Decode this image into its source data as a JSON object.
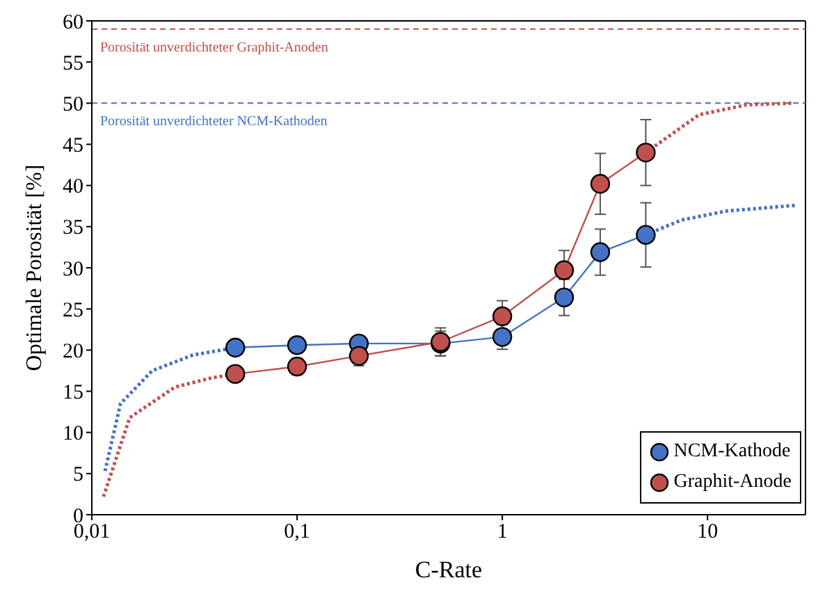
{
  "chart_data": {
    "type": "line",
    "xlabel": "C-Rate",
    "ylabel": "Optimale Porosität [%]",
    "log": "x",
    "xlim": [
      0.01,
      30
    ],
    "xticks": [
      {
        "value": 0.01,
        "label": "0,01"
      },
      {
        "value": 0.1,
        "label": "0,1"
      },
      1,
      10
    ],
    "ylim": [
      0,
      60
    ],
    "yticks": [
      0,
      5,
      10,
      15,
      20,
      25,
      30,
      35,
      40,
      45,
      50,
      55,
      60
    ],
    "grid": false,
    "legend": "bottom right",
    "marker": "circle",
    "line_style": "solid",
    "series": [
      {
        "name": "NCM-Kathode",
        "color": "#4472c4",
        "x": [
          0.05,
          0.1,
          0.2,
          0.5,
          1,
          2,
          3,
          5
        ],
        "values": [
          20.3,
          20.6,
          20.8,
          20.8,
          21.6,
          26.4,
          31.9,
          34.0
        ],
        "errors": [
          null,
          null,
          0.5,
          1.5,
          1.5,
          2.2,
          2.8,
          3.9
        ]
      },
      {
        "name": "Graphit-Anode",
        "color": "#c0504d",
        "x": [
          0.05,
          0.1,
          0.2,
          0.5,
          1,
          2,
          3,
          5
        ],
        "values": [
          17.1,
          18.0,
          19.3,
          21.0,
          24.1,
          29.7,
          40.2,
          44.0
        ],
        "errors": [
          null,
          1.0,
          1.2,
          1.7,
          1.9,
          2.4,
          3.7,
          4.0
        ]
      },
      {
        "color": "#4472c4",
        "marker": "none",
        "line_style": "dotted",
        "x": [
          0.0116,
          0.0138,
          0.0197,
          0.0311,
          0.05
        ],
        "values": [
          5.3,
          13.5,
          17.5,
          19.4,
          20.3
        ]
      },
      {
        "color": "#c0504d",
        "marker": "none",
        "line_style": "dotted",
        "x": [
          0.0114,
          0.0153,
          0.0254,
          0.038,
          0.05
        ],
        "values": [
          2.2,
          11.8,
          15.5,
          16.6,
          17.1
        ]
      },
      {
        "color": "#4472c4",
        "marker": "none",
        "line_style": "dotted",
        "x": [
          5,
          7.45,
          12.4,
          27.2
        ],
        "values": [
          34.0,
          35.8,
          36.9,
          37.6
        ]
      },
      {
        "color": "#c0504d",
        "marker": "none",
        "line_style": "dotted",
        "x": [
          5,
          9.1,
          15.5,
          25.6
        ],
        "values": [
          44.0,
          48.6,
          49.8,
          50.0
        ]
      }
    ],
    "ref_lines": [
      {
        "axis": "y",
        "value": 59,
        "label": "Porosität unverdichteter Graphit-Anoden",
        "color": "#c0504d",
        "line_style": "dashed"
      },
      {
        "axis": "y",
        "value": 50,
        "label": "Porosität unverdichteter NCM-Kathoden",
        "color": "#4472c4",
        "line_style": "dashed"
      }
    ]
  }
}
